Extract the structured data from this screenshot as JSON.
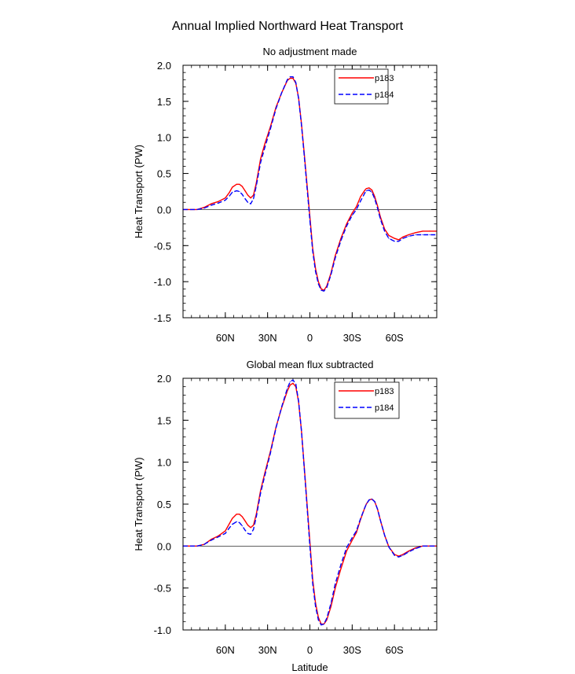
{
  "figure_title": "Annual Implied Northward Heat Transport",
  "chart_data": [
    {
      "type": "line",
      "title": "No adjustment made",
      "xlabel": "",
      "ylabel": "Heat Transport (PW)",
      "xlim": [
        -90,
        90
      ],
      "ylim": [
        -1.5,
        2.0
      ],
      "yticks": [
        "2.0",
        "1.5",
        "1.0",
        "0.5",
        "0.0",
        "-0.5",
        "-1.0",
        "-1.5"
      ],
      "ytick_values": [
        2.0,
        1.5,
        1.0,
        0.5,
        0.0,
        -0.5,
        -1.0,
        -1.5
      ],
      "xticks": [
        "60N",
        "30N",
        "0",
        "30S",
        "60S"
      ],
      "xtick_values": [
        -60,
        -30,
        0,
        30,
        60
      ],
      "legend": [
        "p183",
        "p184"
      ],
      "series": [
        {
          "name": "p183",
          "color": "#ff0000",
          "dash": "solid",
          "x": [
            -90,
            -80,
            -75,
            -70,
            -65,
            -60,
            -57,
            -55,
            -52,
            -50,
            -48,
            -46,
            -44,
            -42,
            -40,
            -38,
            -35,
            -32,
            -28,
            -24,
            -20,
            -16,
            -14,
            -12,
            -10,
            -8,
            -6,
            -4,
            -2,
            0,
            2,
            4,
            6,
            8,
            10,
            12,
            15,
            18,
            22,
            26,
            30,
            33,
            36,
            39,
            40,
            42,
            44,
            46,
            48,
            50,
            53,
            56,
            60,
            63,
            66,
            70,
            75,
            80,
            85,
            90
          ],
          "y": [
            0.0,
            0.0,
            0.03,
            0.08,
            0.11,
            0.16,
            0.24,
            0.31,
            0.35,
            0.35,
            0.32,
            0.26,
            0.2,
            0.16,
            0.2,
            0.37,
            0.7,
            0.91,
            1.15,
            1.42,
            1.62,
            1.79,
            1.82,
            1.82,
            1.75,
            1.55,
            1.2,
            0.78,
            0.34,
            -0.1,
            -0.54,
            -0.82,
            -1.0,
            -1.1,
            -1.12,
            -1.06,
            -0.88,
            -0.64,
            -0.4,
            -0.2,
            -0.05,
            0.04,
            0.18,
            0.27,
            0.29,
            0.3,
            0.27,
            0.18,
            0.05,
            -0.1,
            -0.27,
            -0.36,
            -0.4,
            -0.42,
            -0.38,
            -0.35,
            -0.32,
            -0.3,
            -0.3,
            -0.3
          ]
        },
        {
          "name": "p184",
          "color": "#0000ff",
          "dash": "dashed",
          "x": [
            -90,
            -80,
            -75,
            -70,
            -65,
            -60,
            -57,
            -55,
            -52,
            -50,
            -48,
            -46,
            -44,
            -42,
            -40,
            -38,
            -35,
            -32,
            -28,
            -24,
            -20,
            -16,
            -14,
            -12,
            -10,
            -8,
            -6,
            -4,
            -2,
            0,
            2,
            4,
            6,
            8,
            10,
            12,
            15,
            18,
            22,
            26,
            30,
            33,
            36,
            39,
            40,
            42,
            44,
            46,
            48,
            50,
            53,
            56,
            60,
            63,
            66,
            70,
            75,
            80,
            85,
            90
          ],
          "y": [
            0.0,
            0.0,
            0.02,
            0.06,
            0.09,
            0.13,
            0.19,
            0.24,
            0.26,
            0.25,
            0.21,
            0.15,
            0.1,
            0.08,
            0.15,
            0.33,
            0.65,
            0.86,
            1.12,
            1.4,
            1.62,
            1.8,
            1.84,
            1.84,
            1.76,
            1.54,
            1.18,
            0.75,
            0.3,
            -0.15,
            -0.58,
            -0.86,
            -1.03,
            -1.12,
            -1.13,
            -1.08,
            -0.9,
            -0.67,
            -0.43,
            -0.23,
            -0.08,
            0.0,
            0.12,
            0.23,
            0.26,
            0.27,
            0.24,
            0.15,
            0.02,
            -0.13,
            -0.3,
            -0.4,
            -0.44,
            -0.44,
            -0.4,
            -0.37,
            -0.35,
            -0.35,
            -0.35,
            -0.35
          ]
        }
      ]
    },
    {
      "type": "line",
      "title": "Global mean flux subtracted",
      "xlabel": "Latitude",
      "ylabel": "Heat Transport (PW)",
      "xlim": [
        -90,
        90
      ],
      "ylim": [
        -1.0,
        2.0
      ],
      "yticks": [
        "2.0",
        "1.5",
        "1.0",
        "0.5",
        "0.0",
        "-0.5",
        "-1.0"
      ],
      "ytick_values": [
        2.0,
        1.5,
        1.0,
        0.5,
        0.0,
        -0.5,
        -1.0
      ],
      "xticks": [
        "60N",
        "30N",
        "0",
        "30S",
        "60S"
      ],
      "xtick_values": [
        -60,
        -30,
        0,
        30,
        60
      ],
      "legend": [
        "p183",
        "p184"
      ],
      "series": [
        {
          "name": "p183",
          "color": "#ff0000",
          "dash": "solid",
          "x": [
            -90,
            -80,
            -75,
            -70,
            -65,
            -60,
            -57,
            -55,
            -52,
            -50,
            -48,
            -46,
            -44,
            -42,
            -40,
            -38,
            -35,
            -32,
            -28,
            -24,
            -20,
            -16,
            -14,
            -12,
            -10,
            -8,
            -6,
            -4,
            -2,
            0,
            2,
            4,
            6,
            8,
            10,
            12,
            15,
            18,
            22,
            26,
            30,
            33,
            36,
            39,
            40,
            42,
            44,
            46,
            48,
            50,
            53,
            56,
            60,
            63,
            66,
            70,
            75,
            80,
            85,
            90
          ],
          "y": [
            0.0,
            0.0,
            0.02,
            0.08,
            0.12,
            0.18,
            0.27,
            0.33,
            0.38,
            0.38,
            0.35,
            0.3,
            0.25,
            0.22,
            0.25,
            0.38,
            0.66,
            0.87,
            1.13,
            1.42,
            1.65,
            1.85,
            1.92,
            1.94,
            1.9,
            1.72,
            1.38,
            0.95,
            0.5,
            0.05,
            -0.4,
            -0.68,
            -0.85,
            -0.93,
            -0.93,
            -0.88,
            -0.72,
            -0.5,
            -0.27,
            -0.06,
            0.07,
            0.16,
            0.32,
            0.46,
            0.5,
            0.55,
            0.56,
            0.53,
            0.44,
            0.31,
            0.13,
            -0.01,
            -0.1,
            -0.12,
            -0.1,
            -0.06,
            -0.02,
            0.0,
            0.0,
            0.0
          ]
        },
        {
          "name": "p184",
          "color": "#0000ff",
          "dash": "dashed",
          "x": [
            -90,
            -80,
            -75,
            -70,
            -65,
            -60,
            -57,
            -55,
            -52,
            -50,
            -48,
            -46,
            -44,
            -42,
            -40,
            -38,
            -35,
            -32,
            -28,
            -24,
            -20,
            -16,
            -14,
            -12,
            -10,
            -8,
            -6,
            -4,
            -2,
            0,
            2,
            4,
            6,
            8,
            10,
            12,
            15,
            18,
            22,
            26,
            30,
            33,
            36,
            39,
            40,
            42,
            44,
            46,
            48,
            50,
            53,
            56,
            60,
            63,
            66,
            70,
            75,
            80,
            85,
            90
          ],
          "y": [
            0.0,
            0.0,
            0.02,
            0.07,
            0.11,
            0.15,
            0.22,
            0.26,
            0.29,
            0.28,
            0.24,
            0.19,
            0.15,
            0.14,
            0.2,
            0.35,
            0.63,
            0.84,
            1.11,
            1.41,
            1.66,
            1.88,
            1.96,
            1.98,
            1.93,
            1.73,
            1.38,
            0.93,
            0.47,
            0.0,
            -0.45,
            -0.72,
            -0.88,
            -0.94,
            -0.93,
            -0.86,
            -0.68,
            -0.45,
            -0.22,
            -0.02,
            0.1,
            0.18,
            0.33,
            0.46,
            0.5,
            0.55,
            0.56,
            0.53,
            0.44,
            0.31,
            0.13,
            -0.01,
            -0.11,
            -0.13,
            -0.11,
            -0.07,
            -0.03,
            0.0,
            0.0,
            0.0
          ]
        }
      ]
    }
  ]
}
